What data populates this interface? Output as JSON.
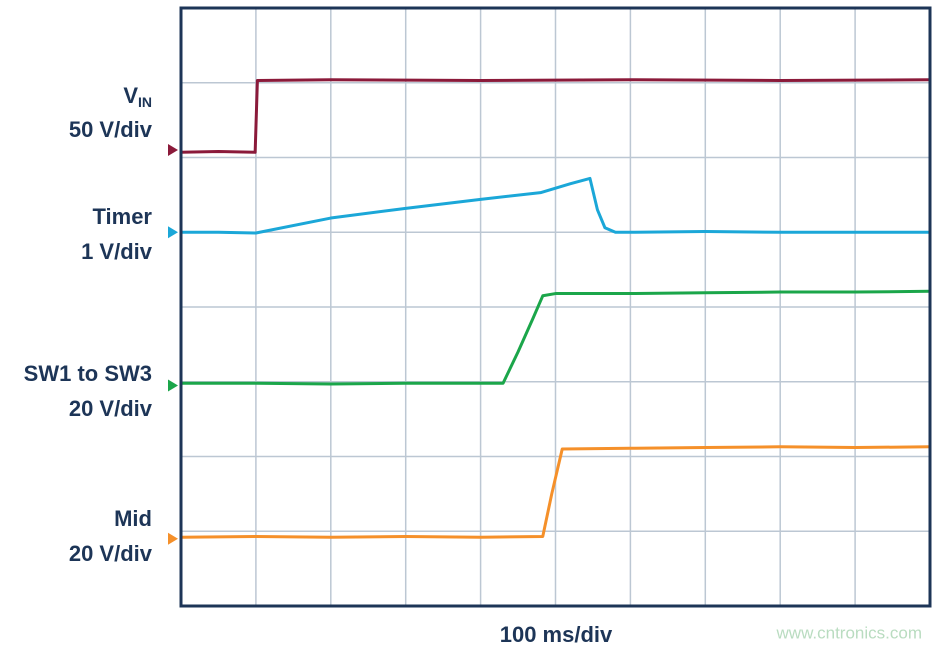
{
  "chart_data": {
    "type": "line",
    "xlabel": "100 ms/div",
    "watermark": "www.cntronics.com",
    "xlim": [
      0,
      1000
    ],
    "ylim": [
      0,
      8
    ],
    "xticks": [
      0,
      100,
      200,
      300,
      400,
      500,
      600,
      700,
      800,
      900,
      1000
    ],
    "yticks": [
      0,
      1,
      2,
      3,
      4,
      5,
      6,
      7,
      8
    ],
    "grid": true,
    "series": [
      {
        "name": "V",
        "subscript": "IN",
        "scale": "50 V/div",
        "color": "#8b1a3a",
        "zero": 6.1,
        "x": [
          0,
          50,
          99,
          102,
          200,
          400,
          600,
          800,
          1000
        ],
        "values": [
          6.07,
          6.08,
          6.07,
          7.03,
          7.04,
          7.03,
          7.04,
          7.03,
          7.04
        ]
      },
      {
        "name": "Timer",
        "scale": "1 V/div",
        "color": "#1ba7d8",
        "zero": 5.0,
        "x": [
          0,
          50,
          100,
          200,
          300,
          400,
          480,
          520,
          546,
          556,
          566,
          580,
          600,
          700,
          800,
          900,
          1000
        ],
        "values": [
          5.0,
          5.0,
          4.99,
          5.19,
          5.32,
          5.44,
          5.53,
          5.65,
          5.72,
          5.3,
          5.06,
          5.0,
          5.0,
          5.01,
          5.0,
          5.0,
          5.0
        ]
      },
      {
        "name": "SW1 to SW3",
        "scale": "20 V/div",
        "color": "#1ba64a",
        "zero": 2.95,
        "x": [
          0,
          100,
          200,
          300,
          400,
          430,
          450,
          470,
          483,
          500,
          600,
          700,
          800,
          900,
          1000
        ],
        "values": [
          2.98,
          2.98,
          2.97,
          2.98,
          2.98,
          2.98,
          3.4,
          3.85,
          4.15,
          4.18,
          4.18,
          4.19,
          4.2,
          4.2,
          4.21
        ]
      },
      {
        "name": "Mid",
        "scale": "20 V/div",
        "color": "#f5902a",
        "zero": 0.9,
        "x": [
          0,
          100,
          200,
          300,
          400,
          483,
          495,
          509,
          600,
          700,
          800,
          900,
          1000
        ],
        "values": [
          0.92,
          0.93,
          0.92,
          0.93,
          0.92,
          0.93,
          1.5,
          2.1,
          2.11,
          2.12,
          2.13,
          2.12,
          2.13
        ]
      }
    ]
  }
}
